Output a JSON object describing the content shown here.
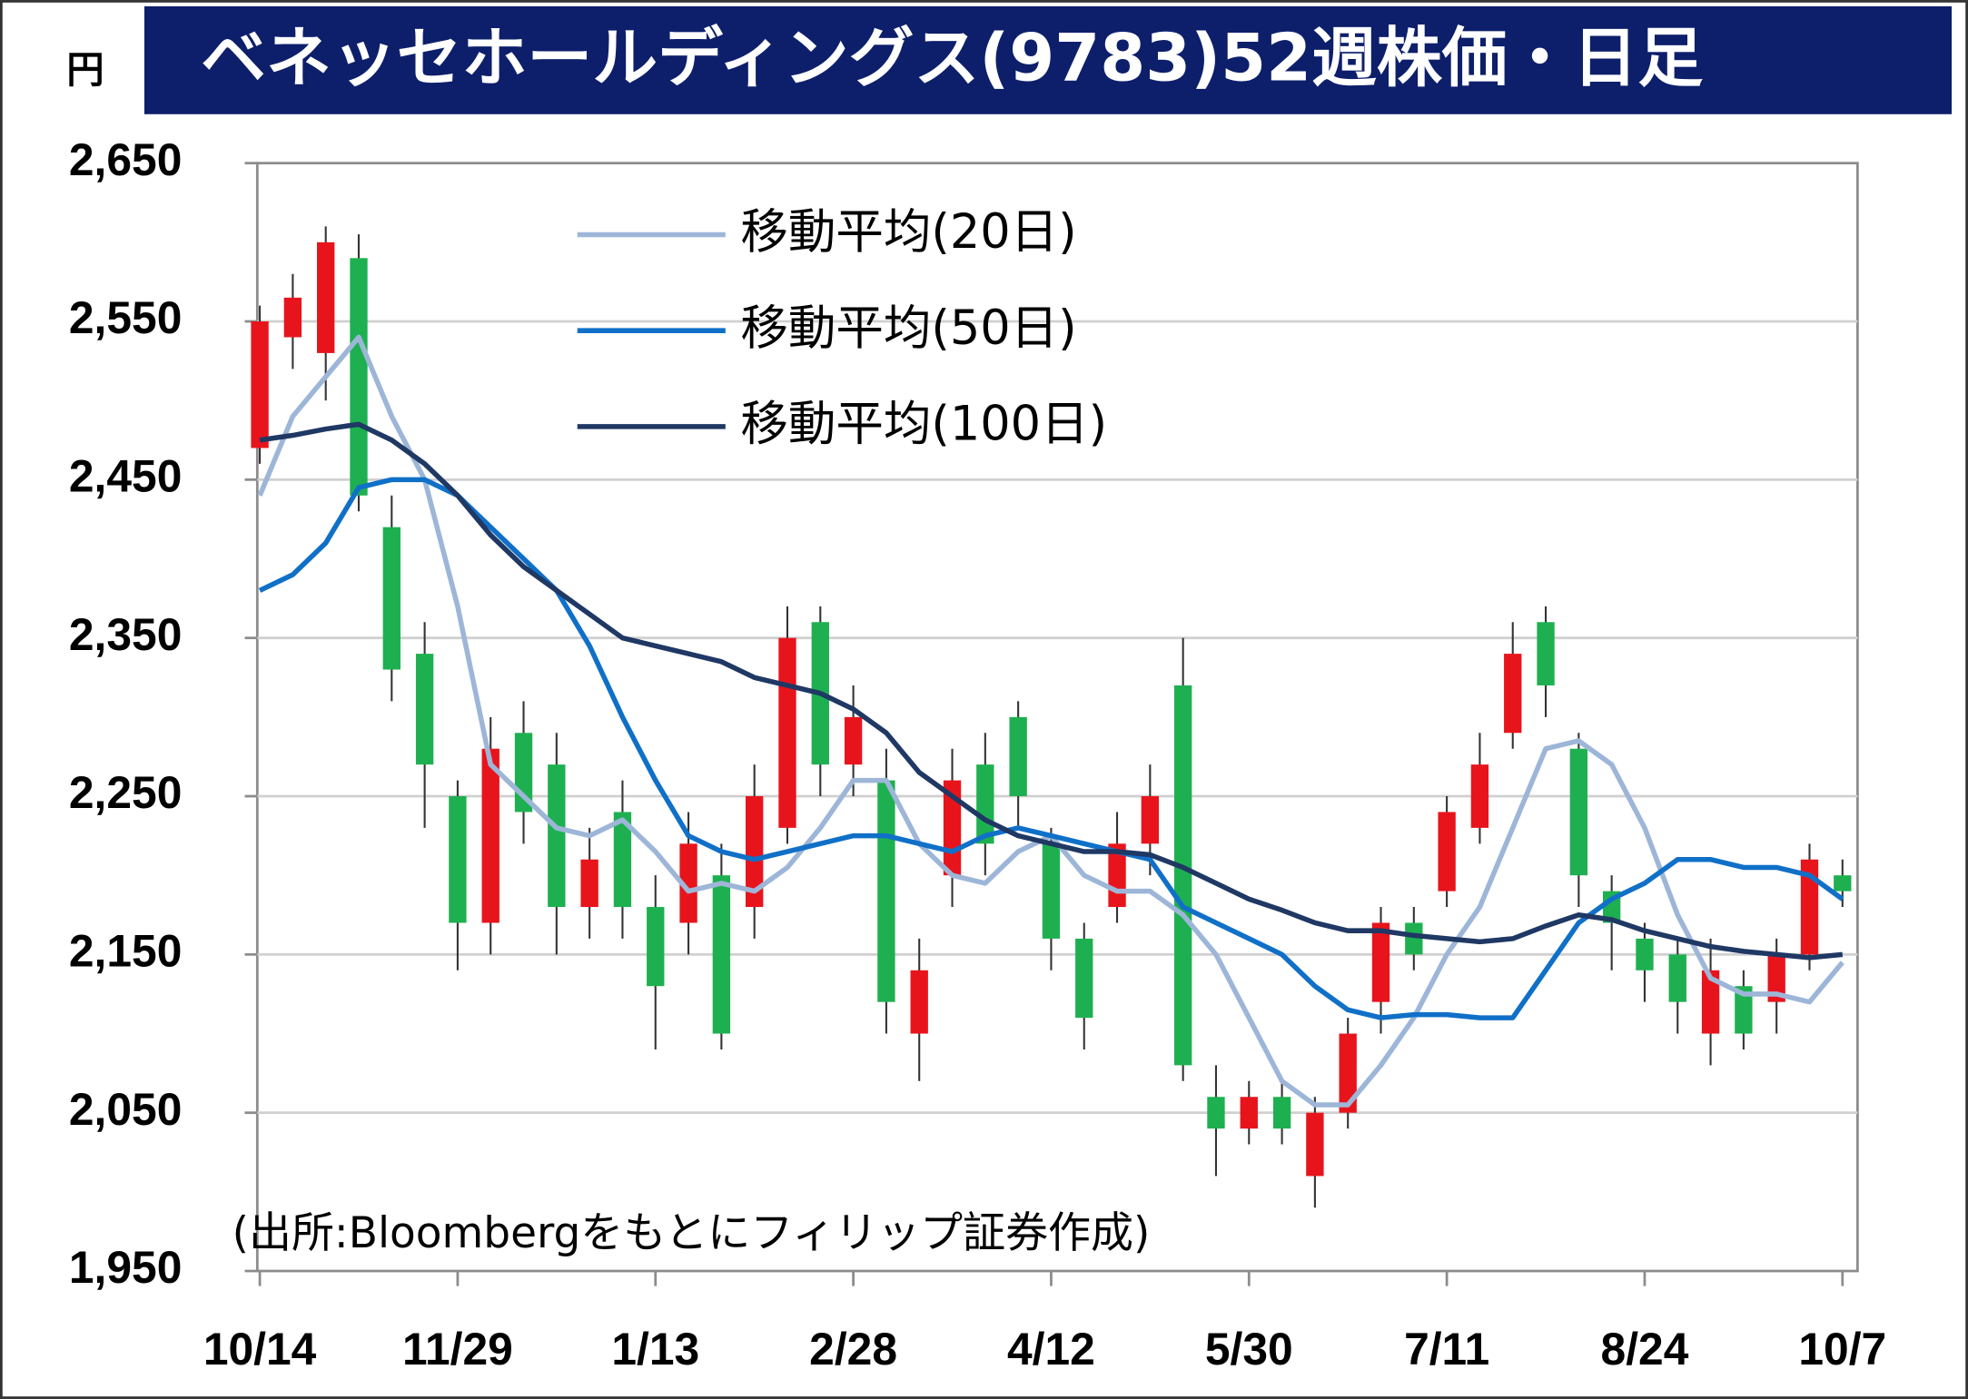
{
  "chart_data": {
    "type": "candlestick",
    "title": "ベネッセホールディングス(9783)52週株価・日足",
    "unit_label": "円",
    "source_note": "(出所:Bloombergをもとにフィリップ証券作成)",
    "categories": [
      "10/14",
      null,
      null,
      null,
      null,
      null,
      "11/29",
      null,
      null,
      null,
      null,
      null,
      "1/13",
      null,
      null,
      null,
      null,
      null,
      "2/28",
      null,
      null,
      null,
      null,
      null,
      "4/12",
      null,
      null,
      null,
      null,
      null,
      "5/30",
      null,
      null,
      null,
      null,
      null,
      "7/11",
      null,
      null,
      null,
      null,
      null,
      "8/24",
      null,
      null,
      null,
      null,
      null,
      "10/7"
    ],
    "open": [
      2470,
      2540,
      2530,
      2590,
      2420,
      2340,
      2250,
      2170,
      2290,
      2270,
      2180,
      2240,
      2180,
      2170,
      2200,
      2180,
      2230,
      2360,
      2270,
      2260,
      2100,
      2200,
      2270,
      2300,
      2220,
      2160,
      2180,
      2220,
      2320,
      2060,
      2040,
      2060,
      2010,
      2050,
      2120,
      2170,
      2190,
      2230,
      2290,
      2360,
      2280,
      2190,
      2160,
      2150,
      2100,
      2130,
      2120,
      2150,
      2200
    ],
    "high": [
      2560,
      2580,
      2610,
      2605,
      2440,
      2360,
      2260,
      2300,
      2310,
      2290,
      2230,
      2260,
      2200,
      2240,
      2220,
      2270,
      2370,
      2370,
      2320,
      2280,
      2160,
      2280,
      2290,
      2310,
      2230,
      2170,
      2240,
      2270,
      2350,
      2080,
      2070,
      2070,
      2060,
      2110,
      2180,
      2180,
      2250,
      2290,
      2360,
      2370,
      2290,
      2200,
      2170,
      2160,
      2160,
      2140,
      2160,
      2220,
      2210
    ],
    "low": [
      2460,
      2520,
      2500,
      2430,
      2310,
      2230,
      2140,
      2150,
      2220,
      2150,
      2160,
      2160,
      2090,
      2150,
      2090,
      2160,
      2220,
      2250,
      2250,
      2100,
      2070,
      2180,
      2200,
      2230,
      2140,
      2090,
      2170,
      2200,
      2070,
      2010,
      2030,
      2030,
      1990,
      2040,
      2100,
      2140,
      2180,
      2220,
      2280,
      2300,
      2180,
      2140,
      2120,
      2100,
      2080,
      2090,
      2100,
      2140,
      2180
    ],
    "close": [
      2550,
      2565,
      2600,
      2440,
      2330,
      2270,
      2170,
      2280,
      2240,
      2180,
      2210,
      2180,
      2130,
      2220,
      2100,
      2250,
      2350,
      2270,
      2300,
      2120,
      2140,
      2260,
      2220,
      2250,
      2160,
      2110,
      2220,
      2250,
      2080,
      2040,
      2060,
      2040,
      2050,
      2100,
      2170,
      2150,
      2240,
      2270,
      2340,
      2320,
      2200,
      2170,
      2140,
      2120,
      2140,
      2100,
      2150,
      2210,
      2190
    ],
    "up_color": "#e8141c",
    "down_color": "#1eb050",
    "series": [
      {
        "name": "移動平均(20日)",
        "color": "#9db6d8",
        "values": [
          2440,
          2490,
          2515,
          2540,
          2490,
          2450,
          2370,
          2270,
          2250,
          2230,
          2225,
          2235,
          2215,
          2190,
          2195,
          2190,
          2205,
          2230,
          2260,
          2260,
          2220,
          2200,
          2195,
          2215,
          2225,
          2200,
          2190,
          2190,
          2175,
          2150,
          2110,
          2070,
          2055,
          2055,
          2080,
          2110,
          2150,
          2180,
          2230,
          2280,
          2285,
          2270,
          2230,
          2175,
          2135,
          2125,
          2125,
          2120,
          2145
        ]
      },
      {
        "name": "移動平均(50日)",
        "color": "#1070c8",
        "values": [
          2380,
          2390,
          2410,
          2445,
          2450,
          2450,
          2440,
          2420,
          2400,
          2380,
          2345,
          2300,
          2260,
          2225,
          2215,
          2210,
          2215,
          2220,
          2225,
          2225,
          2220,
          2215,
          2225,
          2230,
          2225,
          2220,
          2215,
          2210,
          2180,
          2170,
          2160,
          2150,
          2130,
          2115,
          2110,
          2112,
          2112,
          2110,
          2110,
          2140,
          2170,
          2185,
          2195,
          2210,
          2210,
          2205,
          2205,
          2200,
          2185
        ]
      },
      {
        "name": "移動平均(100日)",
        "color": "#1f3864",
        "values": [
          2475,
          2478,
          2482,
          2485,
          2475,
          2460,
          2440,
          2415,
          2395,
          2380,
          2365,
          2350,
          2345,
          2340,
          2335,
          2325,
          2320,
          2315,
          2305,
          2290,
          2265,
          2250,
          2235,
          2225,
          2220,
          2215,
          2215,
          2213,
          2205,
          2195,
          2185,
          2178,
          2170,
          2165,
          2165,
          2162,
          2160,
          2158,
          2160,
          2168,
          2175,
          2172,
          2165,
          2160,
          2155,
          2152,
          2150,
          2148,
          2150
        ]
      }
    ],
    "ylim": [
      1950,
      2650
    ],
    "yticks": [
      {
        "value": 1950,
        "label": "1,950"
      },
      {
        "value": 2050,
        "label": "2,050"
      },
      {
        "value": 2150,
        "label": "2,150"
      },
      {
        "value": 2250,
        "label": "2,250"
      },
      {
        "value": 2350,
        "label": "2,350"
      },
      {
        "value": 2450,
        "label": "2,450"
      },
      {
        "value": 2550,
        "label": "2,550"
      },
      {
        "value": 2650,
        "label": "2,650"
      }
    ],
    "grid": true
  }
}
